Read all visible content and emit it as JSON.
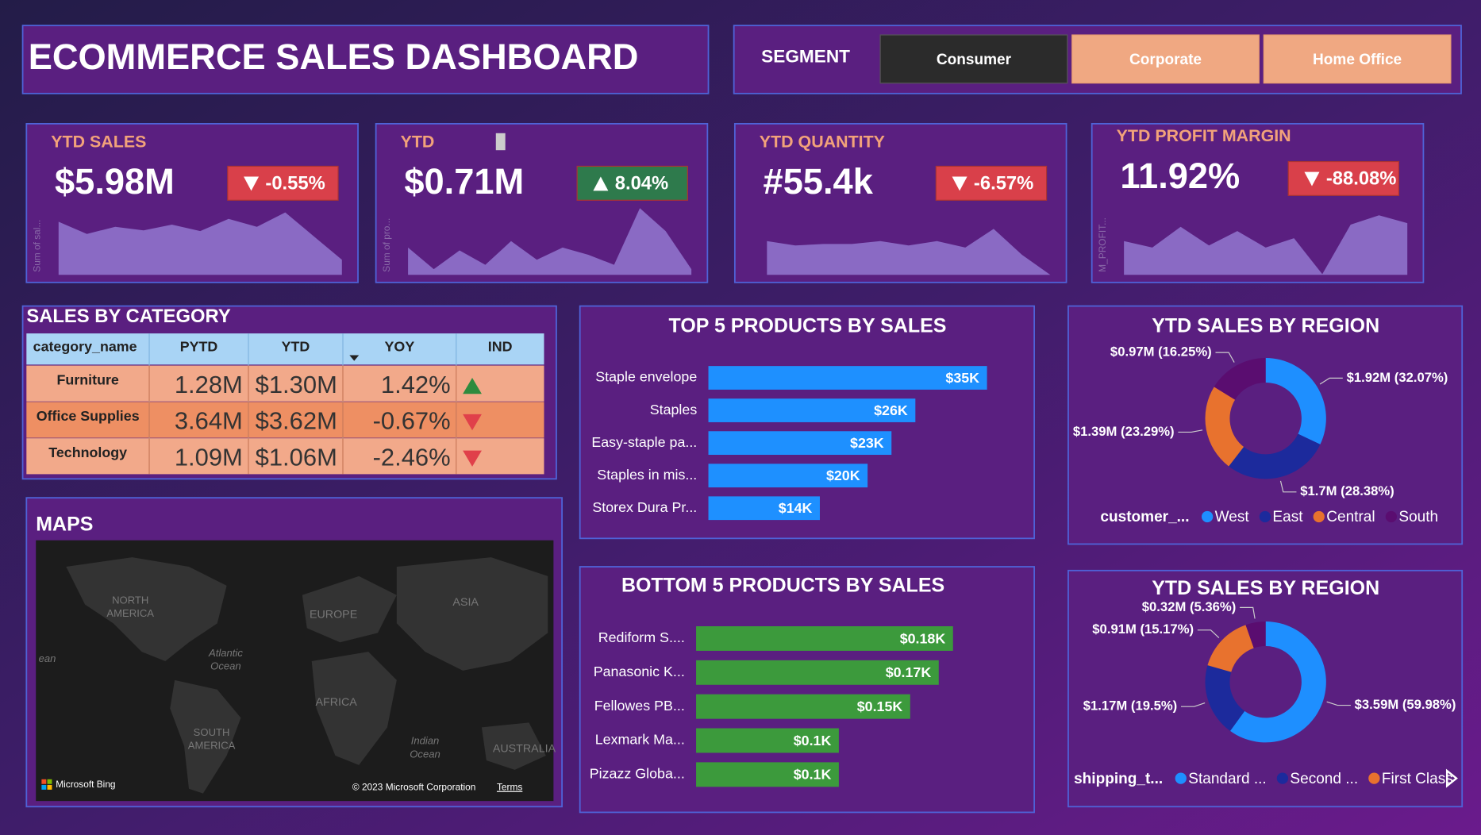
{
  "header": {
    "title": "ECOMMERCE SALES DASHBOARD"
  },
  "segment": {
    "label": "SEGMENT",
    "options": [
      "Consumer",
      "Corporate",
      "Home Office"
    ],
    "selected_index": 0
  },
  "kpis": [
    {
      "title": "YTD SALES",
      "value": "$5.98M",
      "change": "-0.55%",
      "trend": "down",
      "axis_label": "Sum of sal..."
    },
    {
      "title": "YTD",
      "value": "$0.71M",
      "change": "8.04%",
      "trend": "up",
      "axis_label": "Sum of pro..."
    },
    {
      "title": "YTD QUANTITY",
      "value": "#55.4k",
      "change": "-6.57%",
      "trend": "down"
    },
    {
      "title": "YTD PROFIT MARGIN",
      "value": "11.92%",
      "change": "-88.08%",
      "trend": "down",
      "axis_label": "M_PROFIT..."
    }
  ],
  "table": {
    "title": "SALES BY CATEGORY",
    "columns": [
      "category_name",
      "PYTD",
      "YTD",
      "YOY",
      "IND"
    ],
    "rows": [
      [
        "Furniture",
        "1.28M",
        "$1.30M",
        "1.42%"
      ],
      [
        "Office Supplies",
        "3.64M",
        "$3.62M",
        "-0.67%"
      ],
      [
        "Technology",
        "1.09M",
        "$1.06M",
        "-2.46%"
      ]
    ],
    "indicators": [
      "up",
      "down",
      "down"
    ]
  },
  "map": {
    "title": "MAPS",
    "labels": [
      "NORTH",
      "AMERICA",
      "EUROPE",
      "ASIA",
      "Atlantic",
      "Ocean",
      "AFRICA",
      "SOUTH",
      "AMERICA",
      "Indian",
      "Ocean",
      "AUSTRALIA",
      "ean"
    ],
    "brand": "Microsoft Bing",
    "copyright": "© 2023 Microsoft Corporation",
    "terms": "Terms"
  },
  "chart_data": [
    {
      "type": "area",
      "color": "#8a6ac4",
      "ylim": [
        0,
        100
      ],
      "values": [
        74,
        57,
        67,
        62,
        70,
        61,
        78,
        67,
        87,
        54,
        21
      ]
    },
    {
      "type": "area",
      "color": "#8a6ac4",
      "ylim": [
        0,
        100
      ],
      "values": [
        38,
        8,
        34,
        14,
        47,
        21,
        38,
        28,
        14,
        93,
        61,
        8
      ]
    },
    {
      "type": "area",
      "color": "#8a6ac4",
      "ylim": [
        0,
        100
      ],
      "values": [
        47,
        41,
        43,
        43,
        47,
        41,
        47,
        38,
        64,
        28,
        0
      ]
    },
    {
      "type": "area",
      "color": "#8a6ac4",
      "ylim": [
        0,
        100
      ],
      "values": [
        47,
        38,
        67,
        41,
        61,
        38,
        51,
        1,
        70,
        83,
        72
      ]
    },
    {
      "type": "bar",
      "title": "TOP 5 PRODUCTS BY SALES",
      "color": "#1e90ff",
      "xlim": [
        0,
        35000
      ],
      "categories": [
        "Staple envelope",
        "Staples",
        "Easy-staple pa...",
        "Staples in mis...",
        "Storex Dura Pr..."
      ],
      "values": [
        35000,
        26000,
        23000,
        20000,
        14000
      ],
      "value_labels": [
        "$35K",
        "$26K",
        "$23K",
        "$20K",
        "$14K"
      ]
    },
    {
      "type": "bar",
      "title": "BOTTOM 5 PRODUCTS BY SALES",
      "color": "#3c9a3c",
      "xlim": [
        0,
        180
      ],
      "categories": [
        "Rediform S....",
        "Panasonic K...",
        "Fellowes PB...",
        "Lexmark Ma...",
        "Pizazz Globa..."
      ],
      "values": [
        180,
        170,
        150,
        100,
        100
      ],
      "value_labels": [
        "$0.18K",
        "$0.17K",
        "$0.15K",
        "$0.1K",
        "$0.1K"
      ]
    },
    {
      "type": "pie",
      "title": "YTD SALES BY REGION",
      "legend_title": "customer_...",
      "categories": [
        "West",
        "East",
        "Central",
        "South"
      ],
      "values": [
        32.07,
        28.38,
        23.29,
        16.25
      ],
      "value_labels": [
        "$1.92M (32.07%)",
        "$1.7M (28.38%)",
        "$1.39M (23.29%)",
        "$0.97M (16.25%)"
      ],
      "colors": [
        "#1e8fff",
        "#1c2a9c",
        "#e8722e",
        "#5a0d70"
      ]
    },
    {
      "type": "pie",
      "title": "YTD SALES BY REGION",
      "legend_title": "shipping_t...",
      "categories": [
        "Standard ...",
        "Second ...",
        "First Class",
        null
      ],
      "values": [
        59.98,
        19.5,
        15.17,
        5.36
      ],
      "value_labels": [
        "$3.59M (59.98%)",
        "$1.17M (19.5%)",
        "$0.91M (15.17%)",
        "$0.32M (5.36%)"
      ],
      "colors": [
        "#1e8fff",
        "#1c2a9c",
        "#e8722e",
        "#5a0d70"
      ]
    }
  ]
}
